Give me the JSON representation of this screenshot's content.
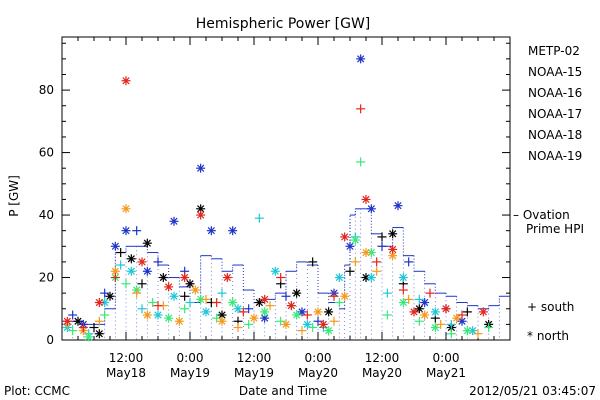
{
  "chart_data": {
    "type": "scatter",
    "title": "Hemispheric Power [GW]",
    "ylabel": "P [GW]",
    "xlabel": "Date and Time",
    "ylim": [
      0,
      97
    ],
    "xlim_hours": [
      0,
      84
    ],
    "y_ticks": [
      "0",
      "20",
      "40",
      "60",
      "80"
    ],
    "x_ticks": [
      {
        "top": "12:00",
        "bottom": "May18"
      },
      {
        "top": "0:00",
        "bottom": "May19"
      },
      {
        "top": "12:00",
        "bottom": "May19"
      },
      {
        "top": "0:00",
        "bottom": "May20"
      },
      {
        "top": "12:00",
        "bottom": "May20"
      },
      {
        "top": "0:00",
        "bottom": "May21"
      }
    ],
    "footer_left": "Plot: CCMC",
    "footer_right": "2012/05/21 03:45:07",
    "marker_legend": [
      {
        "symbol": "+",
        "label": "south"
      },
      {
        "symbol": "*",
        "label": "north"
      }
    ],
    "ovation_label": [
      "– Ovation",
      "Prime HPI"
    ],
    "series": [
      {
        "name": "METP-02",
        "color": "#000000",
        "points": [
          [
            3,
            6,
            "n"
          ],
          [
            6,
            4,
            "s"
          ],
          [
            7,
            2,
            "n"
          ],
          [
            9,
            14,
            "n"
          ],
          [
            11,
            28,
            "s"
          ],
          [
            13,
            26,
            "n"
          ],
          [
            15,
            18,
            "s"
          ],
          [
            16,
            31,
            "n"
          ],
          [
            19,
            20,
            "n"
          ],
          [
            23,
            14,
            "s"
          ],
          [
            24,
            18,
            "n"
          ],
          [
            26,
            42,
            "n"
          ],
          [
            28,
            12,
            "s"
          ],
          [
            30,
            8,
            "n"
          ],
          [
            33,
            6,
            "s"
          ],
          [
            37,
            12,
            "n"
          ],
          [
            41,
            18,
            "s"
          ],
          [
            44,
            15,
            "n"
          ],
          [
            47,
            25,
            "s"
          ],
          [
            50,
            9,
            "n"
          ],
          [
            54,
            22,
            "s"
          ],
          [
            57,
            20,
            "n"
          ],
          [
            60,
            33,
            "s"
          ],
          [
            62,
            34,
            "n"
          ],
          [
            64,
            18,
            "s"
          ],
          [
            67,
            10,
            "n"
          ],
          [
            70,
            7,
            "s"
          ],
          [
            73,
            4,
            "n"
          ],
          [
            76,
            9,
            "s"
          ],
          [
            80,
            5,
            "n"
          ]
        ]
      },
      {
        "name": "NOAA-15",
        "color": "#1d34c8",
        "points": [
          [
            2,
            8,
            "s"
          ],
          [
            4,
            5,
            "n"
          ],
          [
            8,
            15,
            "s"
          ],
          [
            10,
            30,
            "n"
          ],
          [
            12,
            35,
            "n"
          ],
          [
            14,
            35,
            "s"
          ],
          [
            16,
            22,
            "n"
          ],
          [
            18,
            25,
            "s"
          ],
          [
            21,
            38,
            "n"
          ],
          [
            23,
            22,
            "s"
          ],
          [
            26,
            55,
            "n"
          ],
          [
            28,
            35,
            "n"
          ],
          [
            32,
            35,
            "n"
          ],
          [
            35,
            10,
            "s"
          ],
          [
            38,
            7,
            "n"
          ],
          [
            42,
            14,
            "s"
          ],
          [
            45,
            9,
            "n"
          ],
          [
            48,
            6,
            "s"
          ],
          [
            51,
            15,
            "n"
          ],
          [
            54,
            30,
            "n"
          ],
          [
            56,
            90,
            "n"
          ],
          [
            58,
            42,
            "n"
          ],
          [
            60,
            30,
            "s"
          ],
          [
            63,
            43,
            "n"
          ],
          [
            65,
            25,
            "s"
          ],
          [
            68,
            12,
            "n"
          ],
          [
            72,
            10,
            "s"
          ],
          [
            75,
            6,
            "n"
          ]
        ]
      },
      {
        "name": "NOAA-16",
        "color": "#1ec7d8",
        "points": [
          [
            1,
            4,
            "n"
          ],
          [
            5,
            2,
            "s"
          ],
          [
            8,
            12,
            "n"
          ],
          [
            11,
            24,
            "s"
          ],
          [
            13,
            22,
            "n"
          ],
          [
            15,
            10,
            "s"
          ],
          [
            18,
            8,
            "n"
          ],
          [
            21,
            14,
            "n"
          ],
          [
            24,
            12,
            "s"
          ],
          [
            27,
            9,
            "n"
          ],
          [
            30,
            15,
            "s"
          ],
          [
            33,
            10,
            "n"
          ],
          [
            37,
            39,
            "s"
          ],
          [
            40,
            22,
            "n"
          ],
          [
            43,
            11,
            "s"
          ],
          [
            46,
            5,
            "n"
          ],
          [
            49,
            4,
            "s"
          ],
          [
            52,
            20,
            "n"
          ],
          [
            55,
            33,
            "s"
          ],
          [
            58,
            20,
            "n"
          ],
          [
            61,
            15,
            "s"
          ],
          [
            64,
            20,
            "n"
          ],
          [
            67,
            13,
            "s"
          ],
          [
            70,
            9,
            "n"
          ],
          [
            73,
            5,
            "s"
          ],
          [
            77,
            3,
            "n"
          ]
        ]
      },
      {
        "name": "NOAA-17",
        "color": "#38e87a",
        "points": [
          [
            2,
            3,
            "s"
          ],
          [
            5,
            1,
            "n"
          ],
          [
            8,
            8,
            "s"
          ],
          [
            10,
            20,
            "n"
          ],
          [
            12,
            18,
            "s"
          ],
          [
            14,
            16,
            "n"
          ],
          [
            17,
            12,
            "s"
          ],
          [
            20,
            7,
            "n"
          ],
          [
            23,
            10,
            "s"
          ],
          [
            26,
            13,
            "n"
          ],
          [
            29,
            7,
            "s"
          ],
          [
            32,
            12,
            "n"
          ],
          [
            35,
            5,
            "s"
          ],
          [
            38,
            9,
            "n"
          ],
          [
            41,
            6,
            "s"
          ],
          [
            44,
            8,
            "n"
          ],
          [
            47,
            4,
            "s"
          ],
          [
            50,
            3,
            "n"
          ],
          [
            52,
            12,
            "s"
          ],
          [
            55,
            32,
            "n"
          ],
          [
            56,
            57,
            "s"
          ],
          [
            58,
            28,
            "n"
          ],
          [
            61,
            8,
            "s"
          ],
          [
            64,
            12,
            "n"
          ],
          [
            67,
            6,
            "s"
          ],
          [
            70,
            4,
            "n"
          ],
          [
            73,
            2,
            "s"
          ],
          [
            76,
            3,
            "n"
          ],
          [
            80,
            4,
            "s"
          ]
        ]
      },
      {
        "name": "NOAA-18",
        "color": "#f39a1e",
        "points": [
          [
            1,
            5,
            "s"
          ],
          [
            4,
            3,
            "n"
          ],
          [
            7,
            6,
            "s"
          ],
          [
            10,
            22,
            "n"
          ],
          [
            12,
            42,
            "n"
          ],
          [
            14,
            15,
            "s"
          ],
          [
            16,
            8,
            "n"
          ],
          [
            19,
            11,
            "s"
          ],
          [
            22,
            6,
            "n"
          ],
          [
            25,
            16,
            "n"
          ],
          [
            27,
            13,
            "s"
          ],
          [
            30,
            6,
            "n"
          ],
          [
            33,
            4,
            "s"
          ],
          [
            36,
            7,
            "n"
          ],
          [
            39,
            11,
            "s"
          ],
          [
            42,
            5,
            "n"
          ],
          [
            45,
            3,
            "s"
          ],
          [
            48,
            9,
            "n"
          ],
          [
            51,
            6,
            "s"
          ],
          [
            53,
            14,
            "n"
          ],
          [
            55,
            25,
            "s"
          ],
          [
            57,
            28,
            "n"
          ],
          [
            59,
            22,
            "s"
          ],
          [
            62,
            27,
            "n"
          ],
          [
            65,
            13,
            "s"
          ],
          [
            68,
            8,
            "n"
          ],
          [
            71,
            5,
            "s"
          ],
          [
            74,
            7,
            "n"
          ],
          [
            78,
            2,
            "s"
          ]
        ]
      },
      {
        "name": "NOAA-19",
        "color": "#e3251b",
        "points": [
          [
            1,
            6,
            "n"
          ],
          [
            4,
            4,
            "s"
          ],
          [
            7,
            12,
            "n"
          ],
          [
            10,
            20,
            "s"
          ],
          [
            12,
            83,
            "n"
          ],
          [
            15,
            25,
            "n"
          ],
          [
            18,
            11,
            "s"
          ],
          [
            20,
            17,
            "n"
          ],
          [
            23,
            20,
            "n"
          ],
          [
            26,
            40,
            "n"
          ],
          [
            29,
            12,
            "s"
          ],
          [
            31,
            20,
            "n"
          ],
          [
            34,
            9,
            "s"
          ],
          [
            38,
            13,
            "n"
          ],
          [
            41,
            20,
            "s"
          ],
          [
            43,
            11,
            "n"
          ],
          [
            46,
            8,
            "s"
          ],
          [
            49,
            5,
            "n"
          ],
          [
            51,
            14,
            "s"
          ],
          [
            53,
            33,
            "n"
          ],
          [
            56,
            74,
            "s"
          ],
          [
            57,
            45,
            "n"
          ],
          [
            59,
            25,
            "s"
          ],
          [
            62,
            29,
            "n"
          ],
          [
            64,
            16,
            "s"
          ],
          [
            66,
            9,
            "n"
          ],
          [
            69,
            15,
            "s"
          ],
          [
            72,
            10,
            "n"
          ],
          [
            75,
            8,
            "s"
          ],
          [
            79,
            9,
            "n"
          ]
        ]
      }
    ],
    "ovation_hpi": {
      "name": "Ovation Prime HPI",
      "color": "#1d34c8",
      "x": [
        0,
        2,
        4,
        6,
        8,
        10,
        12,
        14,
        16,
        18,
        20,
        22,
        24,
        26,
        28,
        30,
        32,
        34,
        36,
        38,
        40,
        42,
        44,
        46,
        48,
        50,
        52,
        53,
        54,
        55,
        56,
        58,
        60,
        62,
        64,
        66,
        68,
        70,
        72,
        74,
        76,
        78,
        80,
        82,
        84
      ],
      "y": [
        6,
        6,
        5,
        5,
        10,
        28,
        30,
        30,
        28,
        24,
        20,
        17,
        12,
        27,
        26,
        22,
        24,
        16,
        12,
        13,
        15,
        22,
        25,
        24,
        15,
        12,
        10,
        24,
        40,
        42,
        42,
        34,
        30,
        36,
        27,
        22,
        18,
        15,
        14,
        12,
        11,
        10,
        11,
        14,
        20
      ]
    }
  }
}
